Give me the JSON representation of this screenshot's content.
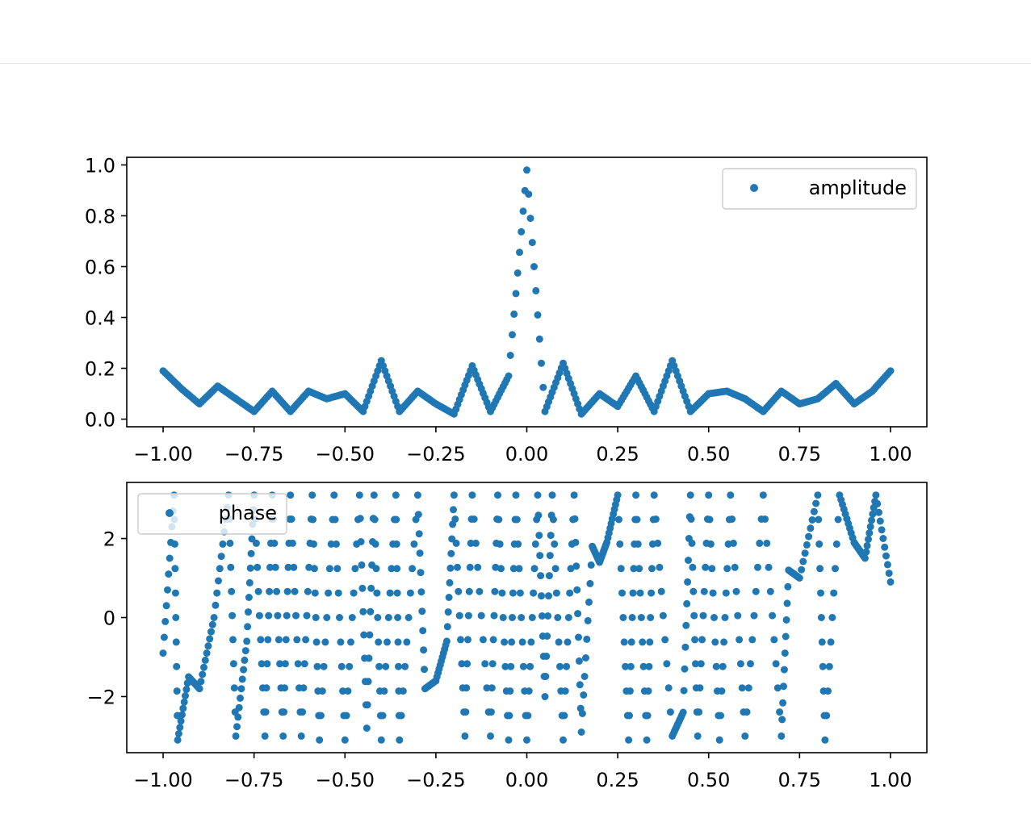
{
  "colors": {
    "series": "#1f77b4",
    "axes": "#000000",
    "background": "#ffffff"
  },
  "chart_data": [
    {
      "type": "scatter",
      "title": "",
      "xlabel": "",
      "ylabel": "",
      "legend": {
        "label": "amplitude",
        "placement": "top-right"
      },
      "xlim": [
        -1.1,
        1.1
      ],
      "ylim": [
        -0.03,
        1.03
      ],
      "xticks": [
        -1.0,
        -0.75,
        -0.5,
        -0.25,
        0.0,
        0.25,
        0.5,
        0.75,
        1.0
      ],
      "xtick_labels": [
        "−1.00",
        "−0.75",
        "−0.50",
        "−0.25",
        "0.00",
        "0.25",
        "0.50",
        "0.75",
        "1.00"
      ],
      "yticks": [
        0.0,
        0.2,
        0.4,
        0.6,
        0.8,
        1.0
      ],
      "ytick_labels": [
        "0.0",
        "0.2",
        "0.4",
        "0.6",
        "0.8",
        "1.0"
      ],
      "grid": false,
      "series": [
        {
          "name": "amplitude",
          "x": [
            -1.0,
            -0.95,
            -0.9,
            -0.85,
            -0.8,
            -0.75,
            -0.7,
            -0.65,
            -0.6,
            -0.55,
            -0.5,
            -0.45,
            -0.4,
            -0.35,
            -0.3,
            -0.25,
            -0.2,
            -0.15,
            -0.1,
            -0.05,
            0.0,
            0.05,
            0.1,
            0.15,
            0.2,
            0.25,
            0.3,
            0.35,
            0.4,
            0.45,
            0.5,
            0.55,
            0.6,
            0.65,
            0.7,
            0.75,
            0.8,
            0.85,
            0.9,
            0.95,
            1.0
          ],
          "y": [
            0.19,
            0.12,
            0.06,
            0.13,
            0.08,
            0.03,
            0.11,
            0.03,
            0.11,
            0.08,
            0.1,
            0.03,
            0.23,
            0.03,
            0.11,
            0.06,
            0.02,
            0.21,
            0.03,
            0.17,
            0.98,
            0.03,
            0.22,
            0.02,
            0.1,
            0.05,
            0.17,
            0.03,
            0.23,
            0.03,
            0.1,
            0.11,
            0.08,
            0.03,
            0.11,
            0.06,
            0.08,
            0.14,
            0.06,
            0.11,
            0.19
          ]
        }
      ]
    },
    {
      "type": "scatter",
      "title": "",
      "xlabel": "",
      "ylabel": "",
      "legend": {
        "label": "phase",
        "placement": "top-left"
      },
      "xlim": [
        -1.1,
        1.1
      ],
      "ylim": [
        -3.42,
        3.42
      ],
      "xticks": [
        -1.0,
        -0.75,
        -0.5,
        -0.25,
        0.0,
        0.25,
        0.5,
        0.75,
        1.0
      ],
      "xtick_labels": [
        "−1.00",
        "−0.75",
        "−0.50",
        "−0.25",
        "0.00",
        "0.25",
        "0.50",
        "0.75",
        "1.00"
      ],
      "yticks": [
        -2,
        0,
        2
      ],
      "ytick_labels": [
        "−2",
        "0",
        "2"
      ],
      "grid": false,
      "series": [
        {
          "name": "phase",
          "x": [
            -1.0,
            -0.97,
            -0.96,
            -0.93,
            -0.9,
            -0.86,
            -0.82,
            -0.8,
            -0.77,
            -0.75,
            -0.72,
            -0.7,
            -0.67,
            -0.65,
            -0.62,
            -0.59,
            -0.57,
            -0.53,
            -0.5,
            -0.46,
            -0.44,
            -0.42,
            -0.4,
            -0.36,
            -0.35,
            -0.3,
            -0.28,
            -0.25,
            -0.22,
            -0.2,
            -0.17,
            -0.15,
            -0.1,
            -0.08,
            -0.05,
            -0.03,
            0.0,
            0.03,
            0.05,
            0.07,
            0.1,
            0.13,
            0.15,
            0.18,
            0.2,
            0.22,
            0.25,
            0.28,
            0.3,
            0.33,
            0.35,
            0.4,
            0.43,
            0.45,
            0.47,
            0.5,
            0.53,
            0.56,
            0.6,
            0.65,
            0.7,
            0.72,
            0.75,
            0.8,
            0.82,
            0.86,
            0.9,
            0.93,
            0.96,
            1.0
          ],
          "y": [
            -0.9,
            3.1,
            -3.1,
            -1.5,
            -1.8,
            0.0,
            3.1,
            -3.0,
            -0.6,
            3.1,
            -3.0,
            3.1,
            -3.0,
            3.1,
            -3.0,
            3.1,
            -3.1,
            3.1,
            -3.1,
            3.1,
            -2.8,
            3.1,
            -3.1,
            3.1,
            -3.1,
            3.1,
            -1.8,
            -1.6,
            -0.6,
            3.1,
            -3.0,
            3.1,
            -3.0,
            3.1,
            -3.1,
            3.1,
            -3.1,
            3.1,
            -2.0,
            3.1,
            -3.1,
            3.1,
            -2.9,
            1.8,
            1.4,
            1.9,
            3.1,
            -3.1,
            3.1,
            -3.1,
            3.1,
            -3.0,
            -2.4,
            3.1,
            -3.0,
            3.1,
            -3.1,
            3.1,
            -3.0,
            3.1,
            -3.0,
            1.2,
            1.0,
            3.1,
            -3.1,
            3.1,
            1.9,
            1.5,
            3.1,
            0.9
          ]
        }
      ]
    }
  ]
}
